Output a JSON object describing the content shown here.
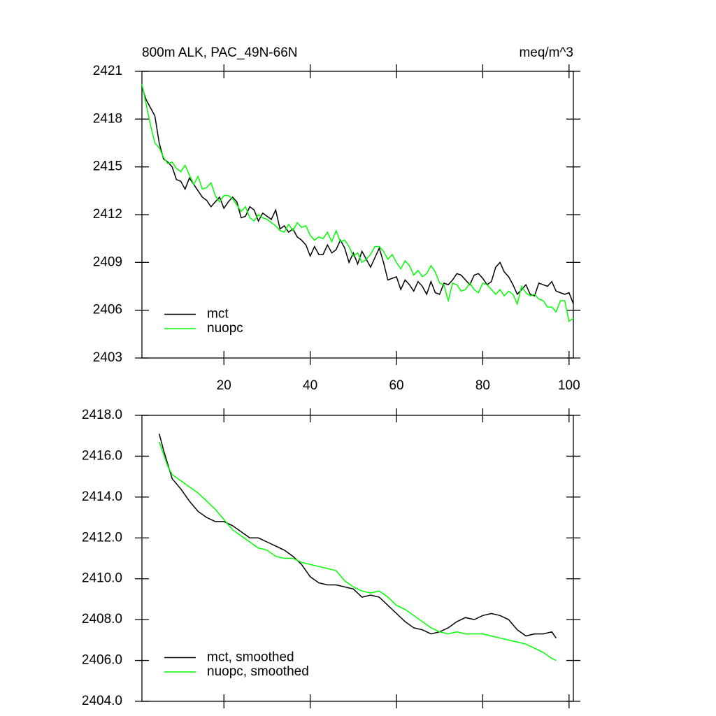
{
  "chart_data": [
    {
      "type": "line",
      "title": "800m ALK, PAC_49N-66N",
      "unit_label": "meq/m^3",
      "x": [
        1,
        2,
        3,
        4,
        5,
        6,
        7,
        8,
        9,
        10,
        11,
        12,
        13,
        14,
        15,
        16,
        17,
        18,
        19,
        20,
        21,
        22,
        23,
        24,
        25,
        26,
        27,
        28,
        29,
        30,
        31,
        32,
        33,
        34,
        35,
        36,
        37,
        38,
        39,
        40,
        41,
        42,
        43,
        44,
        45,
        46,
        47,
        48,
        49,
        50,
        51,
        52,
        53,
        54,
        55,
        56,
        57,
        58,
        59,
        60,
        61,
        62,
        63,
        64,
        65,
        66,
        67,
        68,
        69,
        70,
        71,
        72,
        73,
        74,
        75,
        76,
        77,
        78,
        79,
        80,
        81,
        82,
        83,
        84,
        85,
        86,
        87,
        88,
        89,
        90,
        91,
        92,
        93,
        94,
        95,
        96,
        97,
        98,
        99,
        100,
        101
      ],
      "series": [
        {
          "name": "mct",
          "color": "#000000",
          "values": [
            2420.0,
            2419.2,
            2418.7,
            2418.2,
            2416.5,
            2415.5,
            2415.3,
            2415.0,
            2414.2,
            2414.1,
            2413.6,
            2414.3,
            2413.9,
            2413.5,
            2413.1,
            2412.9,
            2412.5,
            2412.8,
            2413.1,
            2412.4,
            2412.8,
            2413.1,
            2412.8,
            2411.8,
            2411.9,
            2412.5,
            2412.3,
            2411.6,
            2412.1,
            2411.9,
            2411.7,
            2412.3,
            2411.1,
            2411.3,
            2410.9,
            2411.1,
            2410.6,
            2410.4,
            2410.1,
            2409.4,
            2410.0,
            2409.5,
            2409.5,
            2410.1,
            2409.6,
            2409.8,
            2410.4,
            2409.9,
            2409.0,
            2409.6,
            2408.9,
            2409.7,
            2409.2,
            2408.7,
            2409.3,
            2409.9,
            2409.0,
            2407.9,
            2408.0,
            2408.1,
            2407.3,
            2407.9,
            2407.6,
            2407.2,
            2407.8,
            2407.5,
            2407.0,
            2407.8,
            2407.1,
            2407.0,
            2407.7,
            2407.6,
            2407.9,
            2408.3,
            2408.2,
            2407.9,
            2407.6,
            2408.2,
            2408.3,
            2408.0,
            2407.6,
            2407.8,
            2408.7,
            2409.0,
            2408.4,
            2408.1,
            2407.6,
            2407.0,
            2407.3,
            2407.6,
            2407.0,
            2406.9,
            2407.7,
            2407.6,
            2407.5,
            2407.8,
            2407.2,
            2407.1,
            2407.0,
            2407.1,
            2406.4
          ]
        },
        {
          "name": "nuopc",
          "color": "#00ff00",
          "values": [
            2420.2,
            2418.9,
            2417.6,
            2416.5,
            2416.2,
            2415.6,
            2415.2,
            2415.3,
            2414.9,
            2414.7,
            2415.1,
            2414.5,
            2413.9,
            2414.4,
            2413.6,
            2413.7,
            2414.0,
            2413.2,
            2412.8,
            2413.2,
            2413.2,
            2413.0,
            2412.6,
            2412.2,
            2412.5,
            2411.8,
            2411.6,
            2412.0,
            2411.8,
            2411.7,
            2411.5,
            2411.3,
            2411.0,
            2410.9,
            2411.4,
            2411.0,
            2411.5,
            2411.2,
            2411.3,
            2410.7,
            2410.4,
            2410.6,
            2410.5,
            2410.9,
            2410.3,
            2411.0,
            2410.3,
            2410.4,
            2410.0,
            2409.4,
            2409.6,
            2409.0,
            2409.2,
            2409.5,
            2410.0,
            2410.0,
            2409.7,
            2409.2,
            2409.5,
            2409.0,
            2408.6,
            2409.1,
            2408.8,
            2408.2,
            2408.5,
            2408.1,
            2408.3,
            2408.8,
            2408.4,
            2407.7,
            2407.6,
            2406.6,
            2407.7,
            2407.6,
            2407.2,
            2407.3,
            2407.7,
            2407.3,
            2407.1,
            2407.7,
            2407.6,
            2407.3,
            2407.0,
            2407.3,
            2406.9,
            2407.2,
            2407.0,
            2406.4,
            2407.5,
            2407.1,
            2406.9,
            2407.0,
            2406.7,
            2406.6,
            2406.2,
            2406.2,
            2405.9,
            2406.6,
            2406.6,
            2405.3,
            2405.5
          ]
        }
      ],
      "xlim": [
        1,
        101
      ],
      "xticks": [
        20,
        40,
        60,
        80,
        100
      ],
      "ylim": [
        2403,
        2421
      ],
      "yticks": [
        2403,
        2406,
        2409,
        2412,
        2415,
        2418,
        2421
      ],
      "legend": "lower left"
    },
    {
      "type": "line",
      "x": [
        5,
        6,
        7,
        8,
        10,
        12,
        14,
        16,
        18,
        20,
        22,
        24,
        26,
        28,
        30,
        32,
        34,
        36,
        38,
        40,
        42,
        44,
        46,
        48,
        50,
        52,
        54,
        56,
        58,
        60,
        62,
        64,
        66,
        68,
        70,
        72,
        74,
        76,
        78,
        80,
        82,
        84,
        86,
        88,
        90,
        92,
        94,
        96,
        97
      ],
      "series": [
        {
          "name": "mct, smoothed",
          "color": "#000000",
          "values": [
            2417.1,
            2416.3,
            2415.6,
            2414.9,
            2414.4,
            2413.8,
            2413.3,
            2413.0,
            2412.8,
            2412.8,
            2412.6,
            2412.3,
            2412.0,
            2412.0,
            2411.8,
            2411.6,
            2411.4,
            2411.1,
            2410.7,
            2410.1,
            2409.8,
            2409.7,
            2409.7,
            2409.6,
            2409.5,
            2409.1,
            2409.2,
            2409.1,
            2408.7,
            2408.3,
            2407.9,
            2407.6,
            2407.5,
            2407.3,
            2407.4,
            2407.6,
            2407.9,
            2408.1,
            2408.0,
            2408.2,
            2408.3,
            2408.2,
            2408.0,
            2407.5,
            2407.2,
            2407.3,
            2407.3,
            2407.4,
            2407.1
          ]
        },
        {
          "name": "nuopc, smoothed",
          "color": "#00ff00",
          "values": [
            2416.7,
            2416.1,
            2415.5,
            2415.1,
            2414.8,
            2414.5,
            2414.2,
            2413.8,
            2413.4,
            2412.9,
            2412.4,
            2412.1,
            2411.8,
            2411.5,
            2411.4,
            2411.1,
            2411.0,
            2411.0,
            2410.8,
            2410.7,
            2410.6,
            2410.5,
            2410.4,
            2409.9,
            2409.6,
            2409.4,
            2409.3,
            2409.4,
            2409.1,
            2408.7,
            2408.5,
            2408.2,
            2407.9,
            2407.6,
            2407.4,
            2407.3,
            2407.4,
            2407.3,
            2407.3,
            2407.3,
            2407.2,
            2407.1,
            2407.0,
            2406.9,
            2406.8,
            2406.6,
            2406.4,
            2406.1,
            2406.0
          ]
        }
      ],
      "xlim": [
        1,
        101
      ],
      "xticks": [
        20,
        40,
        60,
        80,
        100
      ],
      "ylim": [
        2404,
        2418
      ],
      "yticks": [
        {
          "value": 2404,
          "label": "2404.0"
        },
        {
          "value": 2406,
          "label": "2406.0"
        },
        {
          "value": 2408,
          "label": "2408.0"
        },
        {
          "value": 2410,
          "label": "2410.0"
        },
        {
          "value": 2412,
          "label": "2412.0"
        },
        {
          "value": 2414,
          "label": "2414.0"
        },
        {
          "value": 2416,
          "label": "2416.0"
        },
        {
          "value": 2418,
          "label": "2418.0"
        }
      ],
      "legend": "lower left"
    }
  ]
}
